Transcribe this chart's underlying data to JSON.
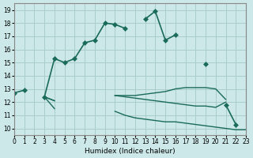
{
  "xlabel": "Humidex (Indice chaleur)",
  "ylabel": "",
  "bg_color": "#cce8e8",
  "grid_color": "#aacccc",
  "line_color": "#1a6b5a",
  "xlim": [
    0,
    23
  ],
  "ylim": [
    9.5,
    19.5
  ],
  "xticks": [
    0,
    1,
    2,
    3,
    4,
    5,
    6,
    7,
    8,
    9,
    10,
    11,
    12,
    13,
    14,
    15,
    16,
    17,
    18,
    19,
    20,
    21,
    22,
    23
  ],
  "yticks": [
    10,
    11,
    12,
    13,
    14,
    15,
    16,
    17,
    18,
    19
  ],
  "series": [
    {
      "x": [
        0,
        1,
        2,
        3,
        4,
        5,
        6,
        7,
        8,
        9,
        10,
        11,
        12,
        13,
        14,
        15,
        16,
        17,
        18,
        19,
        20,
        21,
        22,
        23
      ],
      "y": [
        12.7,
        12.9,
        null,
        12.4,
        15.3,
        15.0,
        15.3,
        16.5,
        16.7,
        18.0,
        17.9,
        17.6,
        null,
        18.3,
        18.9,
        16.7,
        17.1,
        null,
        null,
        14.9,
        null,
        11.8,
        10.3,
        null
      ],
      "marker": "D",
      "markersize": 3,
      "linewidth": 1.2
    },
    {
      "x": [
        0,
        1,
        2,
        3,
        4,
        5,
        6,
        7,
        8,
        9,
        10,
        11,
        12,
        13,
        14,
        15,
        16,
        17,
        18,
        19,
        20,
        21,
        22,
        23
      ],
      "y": [
        12.7,
        null,
        null,
        12.4,
        12.1,
        null,
        null,
        null,
        null,
        null,
        12.5,
        12.5,
        12.5,
        12.6,
        12.7,
        12.8,
        13.0,
        13.1,
        13.1,
        13.1,
        13.0,
        12.2,
        null,
        null
      ],
      "marker": null,
      "markersize": 0,
      "linewidth": 1.0
    },
    {
      "x": [
        0,
        1,
        2,
        3,
        4,
        5,
        6,
        7,
        8,
        9,
        10,
        11,
        12,
        13,
        14,
        15,
        16,
        17,
        18,
        19,
        20,
        21,
        22,
        23
      ],
      "y": [
        12.7,
        null,
        null,
        12.4,
        11.5,
        null,
        null,
        null,
        null,
        null,
        11.3,
        11.0,
        10.8,
        10.7,
        10.6,
        10.5,
        10.5,
        10.4,
        10.3,
        10.2,
        10.1,
        10.0,
        9.9,
        9.9
      ],
      "marker": null,
      "markersize": 0,
      "linewidth": 1.0
    },
    {
      "x": [
        0,
        1,
        2,
        3,
        4,
        5,
        6,
        7,
        8,
        9,
        10,
        11,
        12,
        13,
        14,
        15,
        16,
        17,
        18,
        19,
        20,
        21,
        22,
        23
      ],
      "y": [
        12.7,
        null,
        null,
        12.4,
        12.1,
        null,
        null,
        null,
        null,
        null,
        12.5,
        12.4,
        12.3,
        12.2,
        12.1,
        12.0,
        11.9,
        11.8,
        11.7,
        11.7,
        11.6,
        12.0,
        null,
        null
      ],
      "marker": null,
      "markersize": 0,
      "linewidth": 1.0
    }
  ]
}
